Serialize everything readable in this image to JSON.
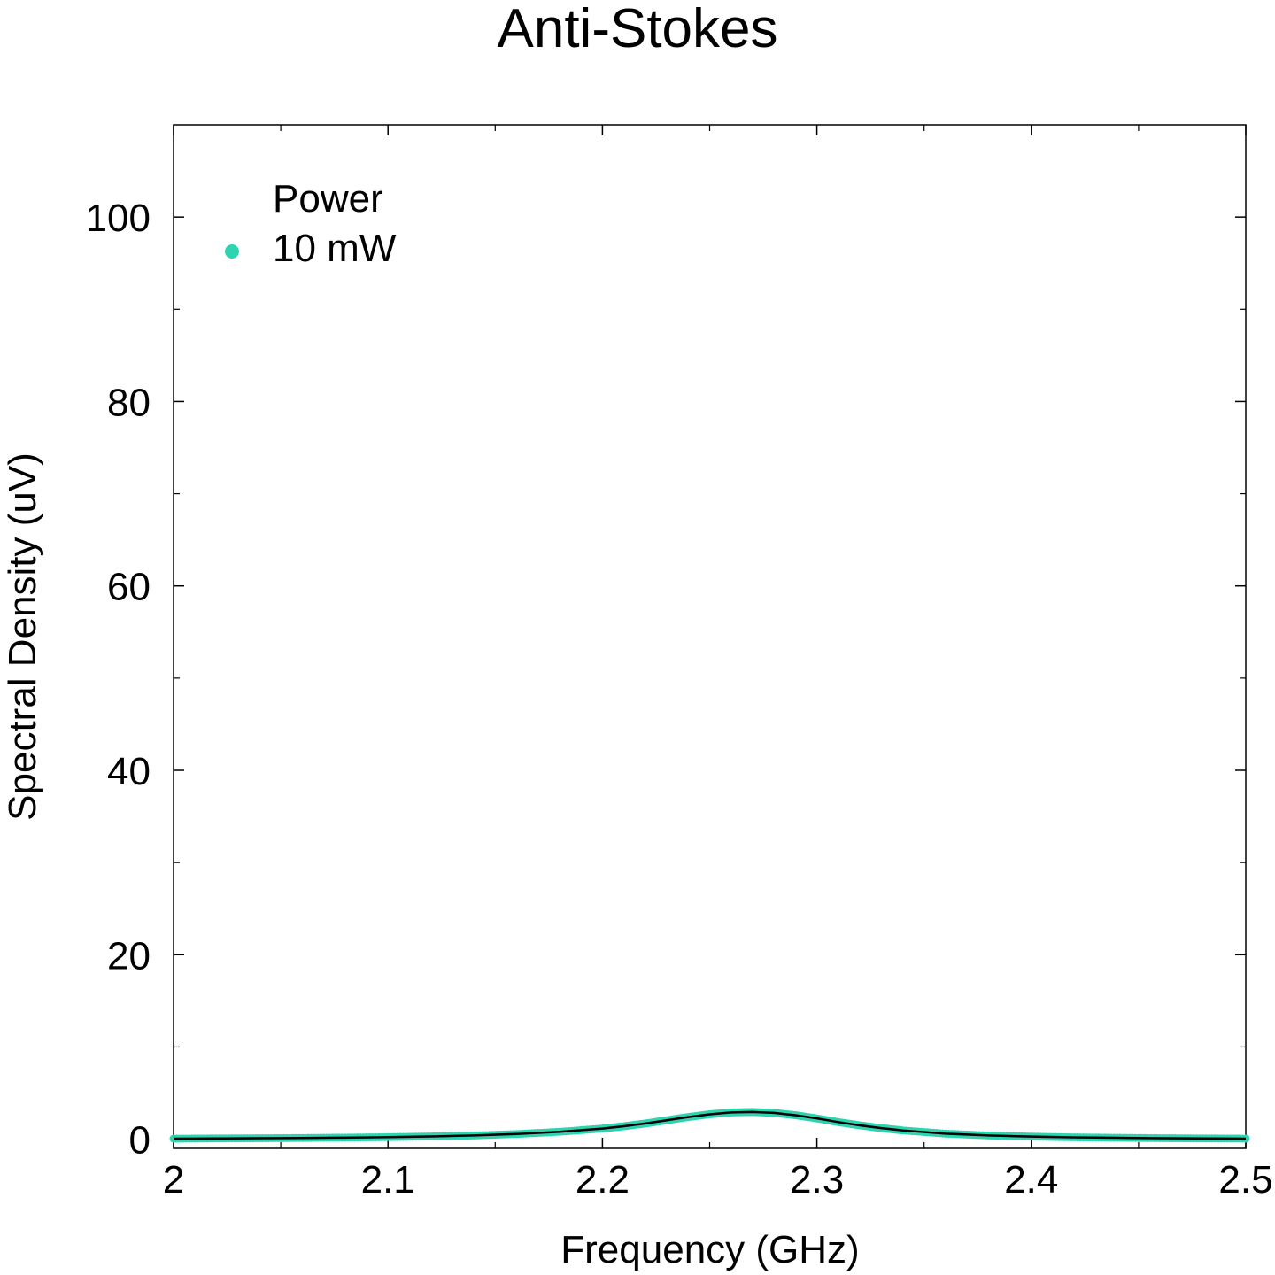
{
  "chart_data": {
    "type": "line",
    "title": "Anti-Stokes",
    "xlabel": "Frequency (GHz)",
    "ylabel": "Spectral Density (uV)",
    "xlim": [
      2.0,
      2.5
    ],
    "ylim": [
      -1,
      110
    ],
    "xticks": [
      2.0,
      2.1,
      2.2,
      2.3,
      2.4,
      2.5
    ],
    "xtick_labels": [
      "2",
      "2.1",
      "2.2",
      "2.3",
      "2.4",
      "2.5"
    ],
    "yticks": [
      0,
      20,
      40,
      60,
      80,
      100
    ],
    "ytick_labels": [
      "0",
      "20",
      "40",
      "60",
      "80",
      "100"
    ],
    "grid": false,
    "legend": {
      "title": "Power",
      "placement": "top-left"
    },
    "series": [
      {
        "name": "10 mW",
        "kind": "scatter",
        "color": "#2ed3b0",
        "x": [
          2.0,
          2.02,
          2.04,
          2.06,
          2.08,
          2.1,
          2.12,
          2.14,
          2.16,
          2.18,
          2.2,
          2.21,
          2.22,
          2.23,
          2.24,
          2.25,
          2.26,
          2.27,
          2.28,
          2.29,
          2.3,
          2.31,
          2.32,
          2.33,
          2.34,
          2.36,
          2.38,
          2.4,
          2.42,
          2.44,
          2.46,
          2.48,
          2.5
        ],
        "y": [
          0.05,
          0.08,
          0.1,
          0.13,
          0.17,
          0.22,
          0.3,
          0.4,
          0.56,
          0.8,
          1.15,
          1.4,
          1.7,
          2.05,
          2.4,
          2.7,
          2.9,
          2.95,
          2.85,
          2.6,
          2.25,
          1.85,
          1.5,
          1.2,
          0.95,
          0.6,
          0.4,
          0.28,
          0.2,
          0.15,
          0.11,
          0.08,
          0.06
        ]
      },
      {
        "name": "",
        "kind": "fit-line",
        "color": "#000000",
        "x": [
          2.0,
          2.02,
          2.04,
          2.06,
          2.08,
          2.1,
          2.12,
          2.14,
          2.16,
          2.18,
          2.2,
          2.21,
          2.22,
          2.23,
          2.24,
          2.25,
          2.26,
          2.27,
          2.28,
          2.29,
          2.3,
          2.31,
          2.32,
          2.33,
          2.34,
          2.36,
          2.38,
          2.4,
          2.42,
          2.44,
          2.46,
          2.48,
          2.5
        ],
        "y": [
          0.05,
          0.08,
          0.1,
          0.13,
          0.17,
          0.22,
          0.3,
          0.4,
          0.56,
          0.8,
          1.15,
          1.4,
          1.7,
          2.05,
          2.4,
          2.7,
          2.9,
          2.95,
          2.85,
          2.6,
          2.25,
          1.85,
          1.5,
          1.2,
          0.95,
          0.6,
          0.4,
          0.28,
          0.2,
          0.15,
          0.11,
          0.08,
          0.06
        ]
      }
    ]
  }
}
